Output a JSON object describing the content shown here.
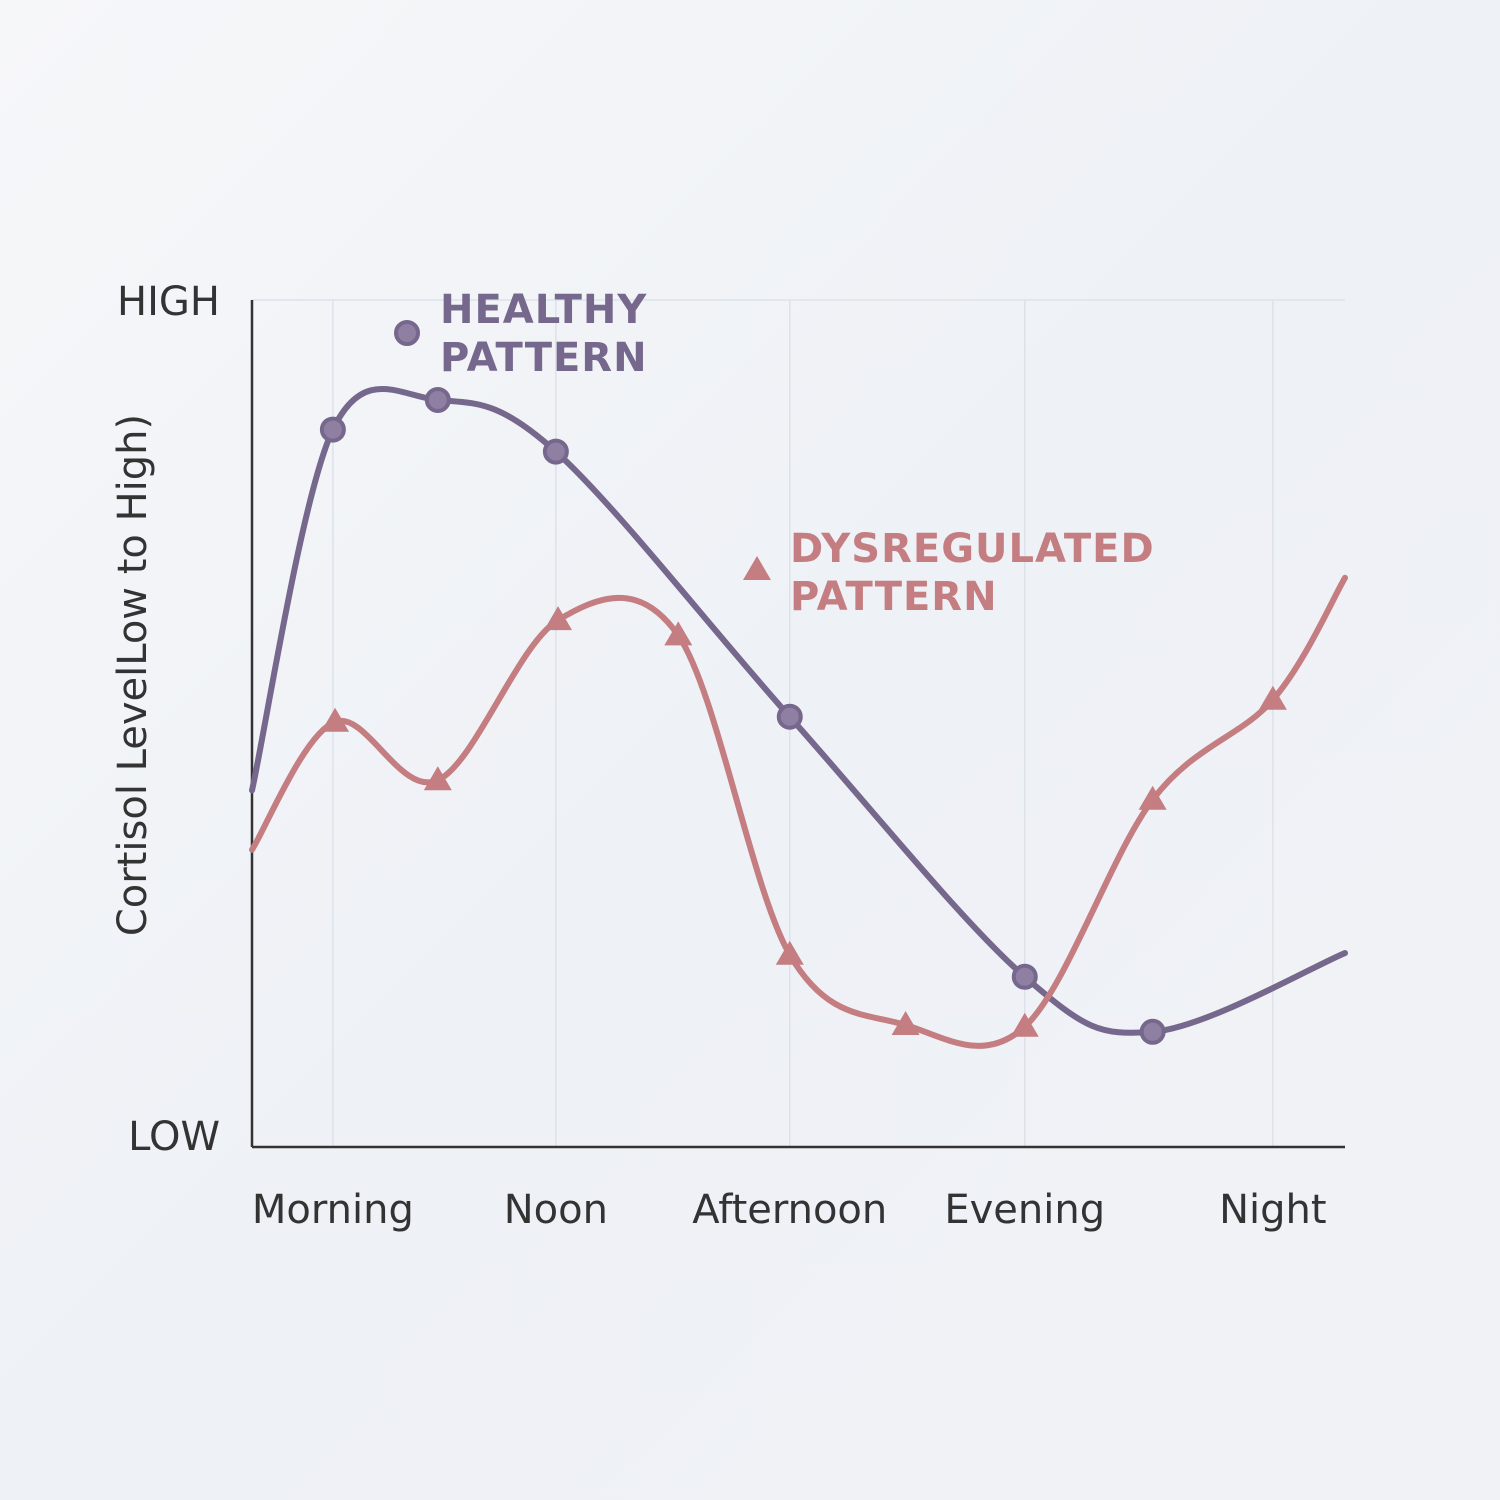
{
  "chart_data": {
    "type": "line",
    "ylabel": "Cortisol LevelLow to High)",
    "xlim": [
      0,
      100
    ],
    "xticks": [
      {
        "value": 7.4,
        "label": "Morning"
      },
      {
        "value": 27.8,
        "label": "Noon"
      },
      {
        "value": 49.2,
        "label": "Afternoon"
      },
      {
        "value": 70.7,
        "label": "Evening"
      },
      {
        "value": 93.4,
        "label": "Night"
      }
    ],
    "ylim": [
      0,
      100
    ],
    "yticks": [
      {
        "value": 0,
        "label": "LOW"
      },
      {
        "value": 100,
        "label": "HIGH"
      }
    ],
    "grid": true,
    "series": [
      {
        "name": "HEALTHY PATTERN",
        "color": "#76678c",
        "marker": "circle",
        "x": [
          0,
          7.4,
          17.0,
          27.8,
          49.2,
          70.7,
          82.4,
          100
        ],
        "values": [
          42.1,
          84.7,
          88.2,
          82.1,
          50.8,
          20.1,
          13.6,
          22.9
        ]
      },
      {
        "name": "DYSREGULATED PATTERN",
        "color": "#c47d80",
        "marker": "triangle",
        "x": [
          0,
          7.6,
          17.0,
          28.0,
          39.0,
          49.2,
          59.8,
          70.7,
          82.4,
          93.4,
          100
        ],
        "values": [
          35.1,
          50.2,
          43.3,
          62.2,
          60.4,
          22.7,
          14.4,
          14.2,
          41.0,
          52.8,
          67.2
        ]
      }
    ]
  }
}
